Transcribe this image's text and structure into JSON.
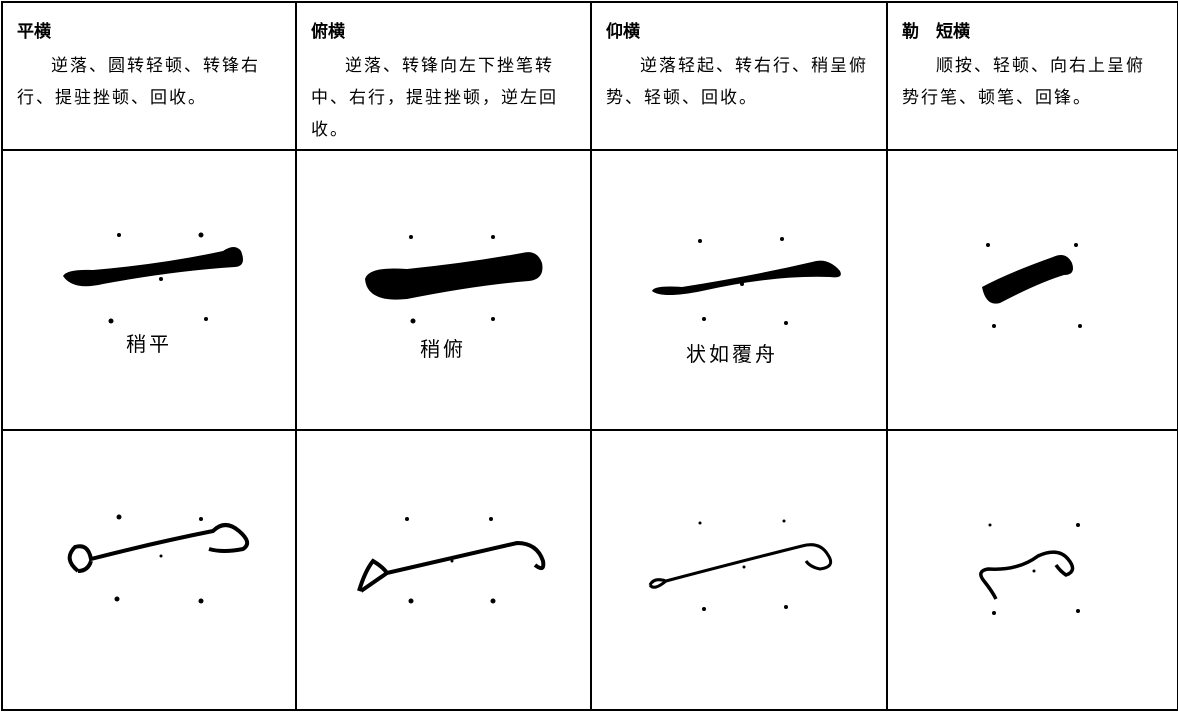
{
  "columns": [
    {
      "title": "平横",
      "description": "逆落、圆转轻顿、转锋右行、提驻挫顿、回收。",
      "caption": "稍平"
    },
    {
      "title": "俯横",
      "description": "逆落、转锋向左下挫笔转中、右行，提驻挫顿，逆左回收。",
      "caption": "稍俯"
    },
    {
      "title": "仰横",
      "description": "逆落轻起、转右行、稍呈俯势、轻顿、回收。",
      "caption": "状如覆舟"
    },
    {
      "title": "勒　短横",
      "description": "顺按、轻顿、向右上呈俯势行笔、顿笔、回锋。"
    }
  ]
}
